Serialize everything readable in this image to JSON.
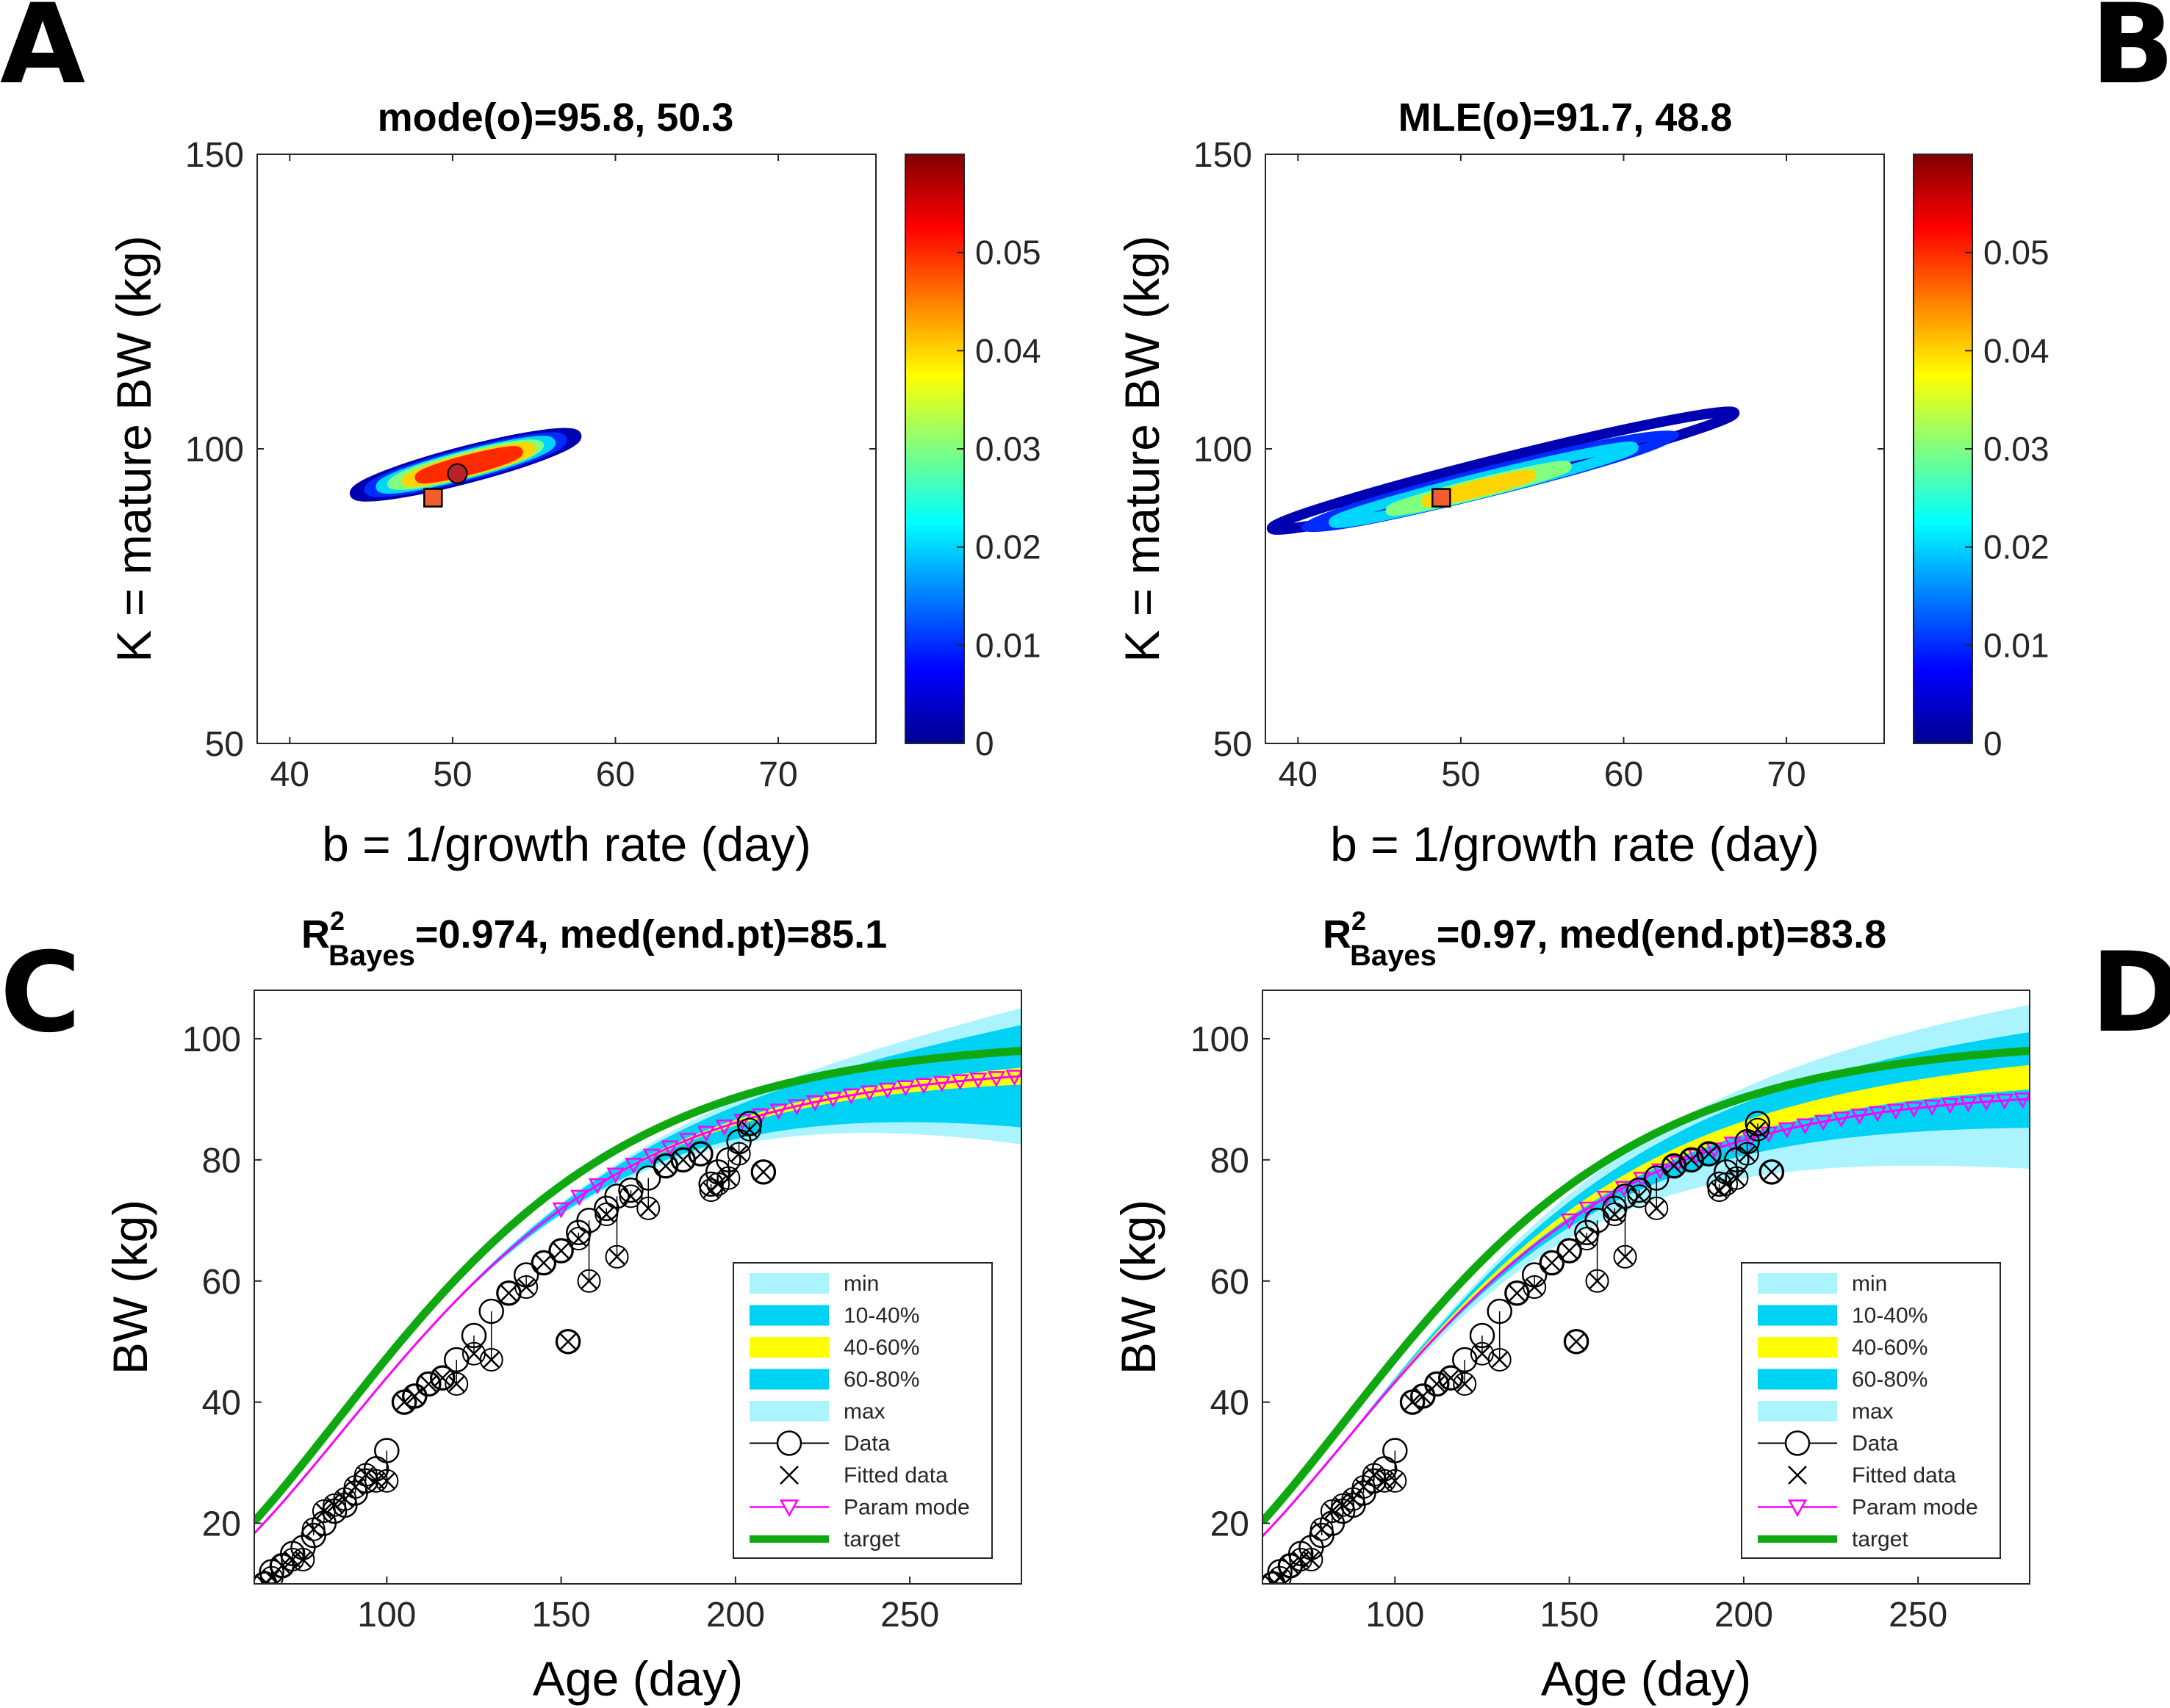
{
  "panels": {
    "A": {
      "letter": "A",
      "title": "mode(o)=95.8, 50.3"
    },
    "B": {
      "letter": "B",
      "title": "MLE(o)=91.7, 48.8"
    },
    "C": {
      "letter": "C",
      "title_r2": "R",
      "title_sup": "2",
      "title_sub": "Bayes",
      "title_rest": "=0.974,  med(end.pt)=85.1"
    },
    "D": {
      "letter": "D",
      "title_r2": "R",
      "title_sup": "2",
      "title_sub": "Bayes",
      "title_rest": "=0.97,  med(end.pt)=83.8"
    }
  },
  "contour_axes": {
    "xlabel": "b = 1/growth rate (day)",
    "ylabel": "K = mature BW (kg)",
    "xlim": [
      38,
      76
    ],
    "ylim": [
      50,
      150
    ],
    "xticks": [
      40,
      50,
      60,
      70
    ],
    "yticks": [
      50,
      100,
      150
    ],
    "colorbar_ticks": [
      "0",
      "0.01",
      "0.02",
      "0.03",
      "0.04",
      "0.05"
    ],
    "colorbar_range": [
      0,
      0.06
    ]
  },
  "growth_axes": {
    "xlabel": "Age (day)",
    "ylabel": "BW (kg)",
    "xlim": [
      62,
      282
    ],
    "ylim": [
      10,
      108
    ],
    "xticks": [
      100,
      150,
      200,
      250
    ],
    "yticks": [
      20,
      40,
      60,
      80,
      100
    ]
  },
  "legend": {
    "items": [
      "min",
      "10-40%",
      "40-60%",
      "60-80%",
      "max",
      "Data",
      "Fitted data",
      "Param mode",
      "target"
    ],
    "colors": {
      "min": "#aaf3ff",
      "band1": "#00d2f5",
      "mid": "#ffff00",
      "target": "#10a810",
      "param": "#ff00ff"
    }
  },
  "chart_data": [
    {
      "type": "contour",
      "panel": "A",
      "title": "mode(o)=95.8, 50.3",
      "mode": {
        "b": 50.3,
        "K": 95.8
      },
      "mle": {
        "b": 48.8,
        "K": 91.7
      },
      "contours": [
        {
          "level": 0.003,
          "center": [
            50.8,
            97.3
          ],
          "slope": 0.72,
          "semi_major": 6.8,
          "semi_minor": 2.3
        },
        {
          "level": 0.01,
          "center": [
            50.8,
            97.3
          ],
          "slope": 0.72,
          "semi_major": 5.9,
          "semi_minor": 1.9
        },
        {
          "level": 0.02,
          "center": [
            50.8,
            97.3
          ],
          "slope": 0.72,
          "semi_major": 5.2,
          "semi_minor": 1.6
        },
        {
          "level": 0.03,
          "center": [
            50.8,
            97.3
          ],
          "slope": 0.72,
          "semi_major": 4.5,
          "semi_minor": 1.35
        },
        {
          "level": 0.04,
          "center": [
            51.0,
            97.3
          ],
          "slope": 0.72,
          "semi_major": 3.8,
          "semi_minor": 1.1
        },
        {
          "level": 0.05,
          "center": [
            51.0,
            97.3
          ],
          "slope": 0.72,
          "semi_major": 3.0,
          "semi_minor": 0.85
        }
      ]
    },
    {
      "type": "contour",
      "panel": "B",
      "title": "MLE(o)=91.7, 48.8",
      "mle": {
        "b": 48.8,
        "K": 91.7
      },
      "contours": [
        {
          "level": 0.003,
          "center": [
            52.6,
            96.3
          ],
          "slope": 0.69,
          "semi_major": 14.2,
          "semi_minor": 2.1
        },
        {
          "level": 0.01,
          "center": [
            51.8,
            94.5
          ],
          "slope": 0.69,
          "semi_major": 11.3,
          "semi_minor": 1.7
        },
        {
          "level": 0.02,
          "center": [
            51.4,
            93.9
          ],
          "slope": 0.69,
          "semi_major": 9.2,
          "semi_minor": 1.3
        },
        {
          "level": 0.03,
          "center": [
            51.1,
            93.3
          ],
          "slope": 0.69,
          "semi_major": 5.4,
          "semi_minor": 0.85
        },
        {
          "level": 0.04,
          "center": [
            51.1,
            93.3
          ],
          "slope": 0.69,
          "semi_major": 3.2,
          "semi_minor": 0.55
        }
      ]
    },
    {
      "type": "line",
      "panel": "C",
      "title": "R2 Bayes=0.974, med(end.pt)=85.1",
      "data_x": [
        65,
        67,
        70,
        73,
        76,
        79,
        82,
        85,
        88,
        91,
        94,
        97,
        100,
        105,
        108,
        112,
        116,
        120,
        125,
        130,
        135,
        140,
        145,
        150,
        152,
        155,
        158,
        163,
        166,
        170,
        175,
        180,
        185,
        190,
        193,
        195,
        198,
        201,
        204,
        208
      ],
      "data_y": [
        10,
        12,
        13,
        15,
        16,
        18,
        20,
        22,
        23,
        25,
        27,
        29,
        32,
        40,
        41,
        43,
        44,
        47,
        51,
        55,
        58,
        61,
        63,
        65,
        50,
        68,
        70,
        72,
        74,
        75,
        77,
        79,
        80,
        81,
        76,
        78,
        80,
        83,
        86,
        78
      ],
      "fitted_y": [
        10,
        11,
        13,
        14,
        14,
        19,
        22,
        23,
        24,
        26,
        28,
        27,
        27,
        40,
        41,
        43,
        44,
        43,
        48,
        47,
        58,
        59,
        63,
        65,
        50,
        67,
        60,
        71,
        64,
        74,
        72,
        79,
        80,
        81,
        75,
        76,
        77,
        81,
        85,
        78
      ],
      "target": {
        "K": 100,
        "b": 50.3,
        "t0": 85.5
      },
      "param_mode": {
        "K": 95.8,
        "b": 50.3,
        "t0": 87.3
      },
      "bands": {
        "center": {
          "K": 95.8,
          "b": 50.3,
          "t0": 87.3
        },
        "min_spread": [
          -0.12,
          0.12
        ],
        "outer_spread": [
          -0.09,
          0.09
        ],
        "mid_spread": [
          -0.015,
          0.015
        ],
        "growth": "quadratic"
      }
    },
    {
      "type": "line",
      "panel": "D",
      "title": "R2 Bayes=0.97, med(end.pt)=83.8",
      "data_x": [
        65,
        67,
        70,
        73,
        76,
        79,
        82,
        85,
        88,
        91,
        94,
        97,
        100,
        105,
        108,
        112,
        116,
        120,
        125,
        130,
        135,
        140,
        145,
        150,
        152,
        155,
        158,
        163,
        166,
        170,
        175,
        180,
        185,
        190,
        193,
        195,
        198,
        201,
        204,
        208
      ],
      "data_y": [
        10,
        12,
        13,
        15,
        16,
        18,
        20,
        22,
        23,
        25,
        27,
        29,
        32,
        40,
        41,
        43,
        44,
        47,
        51,
        55,
        58,
        61,
        63,
        65,
        50,
        68,
        70,
        72,
        74,
        75,
        77,
        79,
        80,
        81,
        76,
        78,
        80,
        83,
        86,
        78
      ],
      "fitted_y": [
        10,
        11,
        13,
        14,
        14,
        19,
        22,
        23,
        24,
        26,
        28,
        27,
        27,
        40,
        41,
        43,
        44,
        43,
        48,
        47,
        58,
        59,
        63,
        65,
        50,
        67,
        60,
        71,
        64,
        74,
        72,
        79,
        80,
        81,
        75,
        76,
        77,
        81,
        85,
        78
      ],
      "target": {
        "K": 100,
        "b": 50.3,
        "t0": 85.5
      },
      "param_mode": {
        "K": 91.7,
        "b": 48.8,
        "t0": 86.0
      },
      "bands": {
        "center": {
          "K": 91.9,
          "b": 48.8,
          "t0": 86.0
        },
        "min_spread": [
          -0.13,
          0.17
        ],
        "outer_spread": [
          -0.055,
          0.12
        ],
        "mid_spread": [
          0.015,
          0.06
        ],
        "growth": "linear"
      }
    }
  ]
}
